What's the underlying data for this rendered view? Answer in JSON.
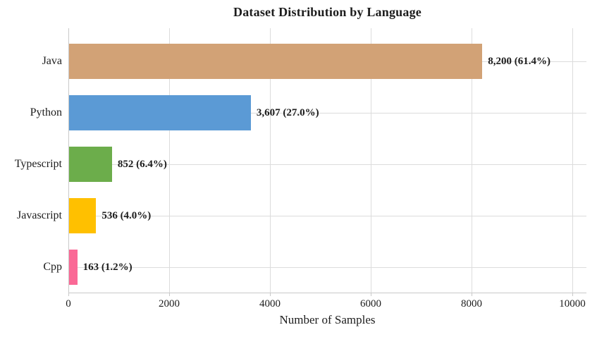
{
  "title": "Dataset Distribution by Language",
  "chart_data": {
    "type": "bar",
    "orientation": "horizontal",
    "title": "Dataset Distribution by Language",
    "xlabel": "Number of Samples",
    "categories": [
      "Java",
      "Python",
      "Typescript",
      "Javascript",
      "Cpp"
    ],
    "values": [
      8200,
      3607,
      852,
      536,
      163
    ],
    "percentages": [
      61.4,
      27.0,
      6.4,
      4.0,
      1.2
    ],
    "bar_labels": [
      "8,200 (61.4%)",
      "3,607 (27.0%)",
      "852 (6.4%)",
      "536 (4.0%)",
      "163 (1.2%)"
    ],
    "bar_colors": [
      "#d2a276",
      "#5b9ad5",
      "#6cad4b",
      "#ffc000",
      "#fa6996"
    ],
    "xlim": [
      0,
      10280
    ],
    "xticks": [
      0,
      2000,
      4000,
      6000,
      8000,
      10000
    ],
    "xtick_labels": [
      "0",
      "2000",
      "4000",
      "6000",
      "8000",
      "10000"
    ],
    "grid": true,
    "legend": "none"
  },
  "style": {
    "grid_color": "#dcdcdc",
    "axis_color": "#c9c9c9",
    "text_color": "#1c1c1c",
    "background": "#ffffff"
  }
}
